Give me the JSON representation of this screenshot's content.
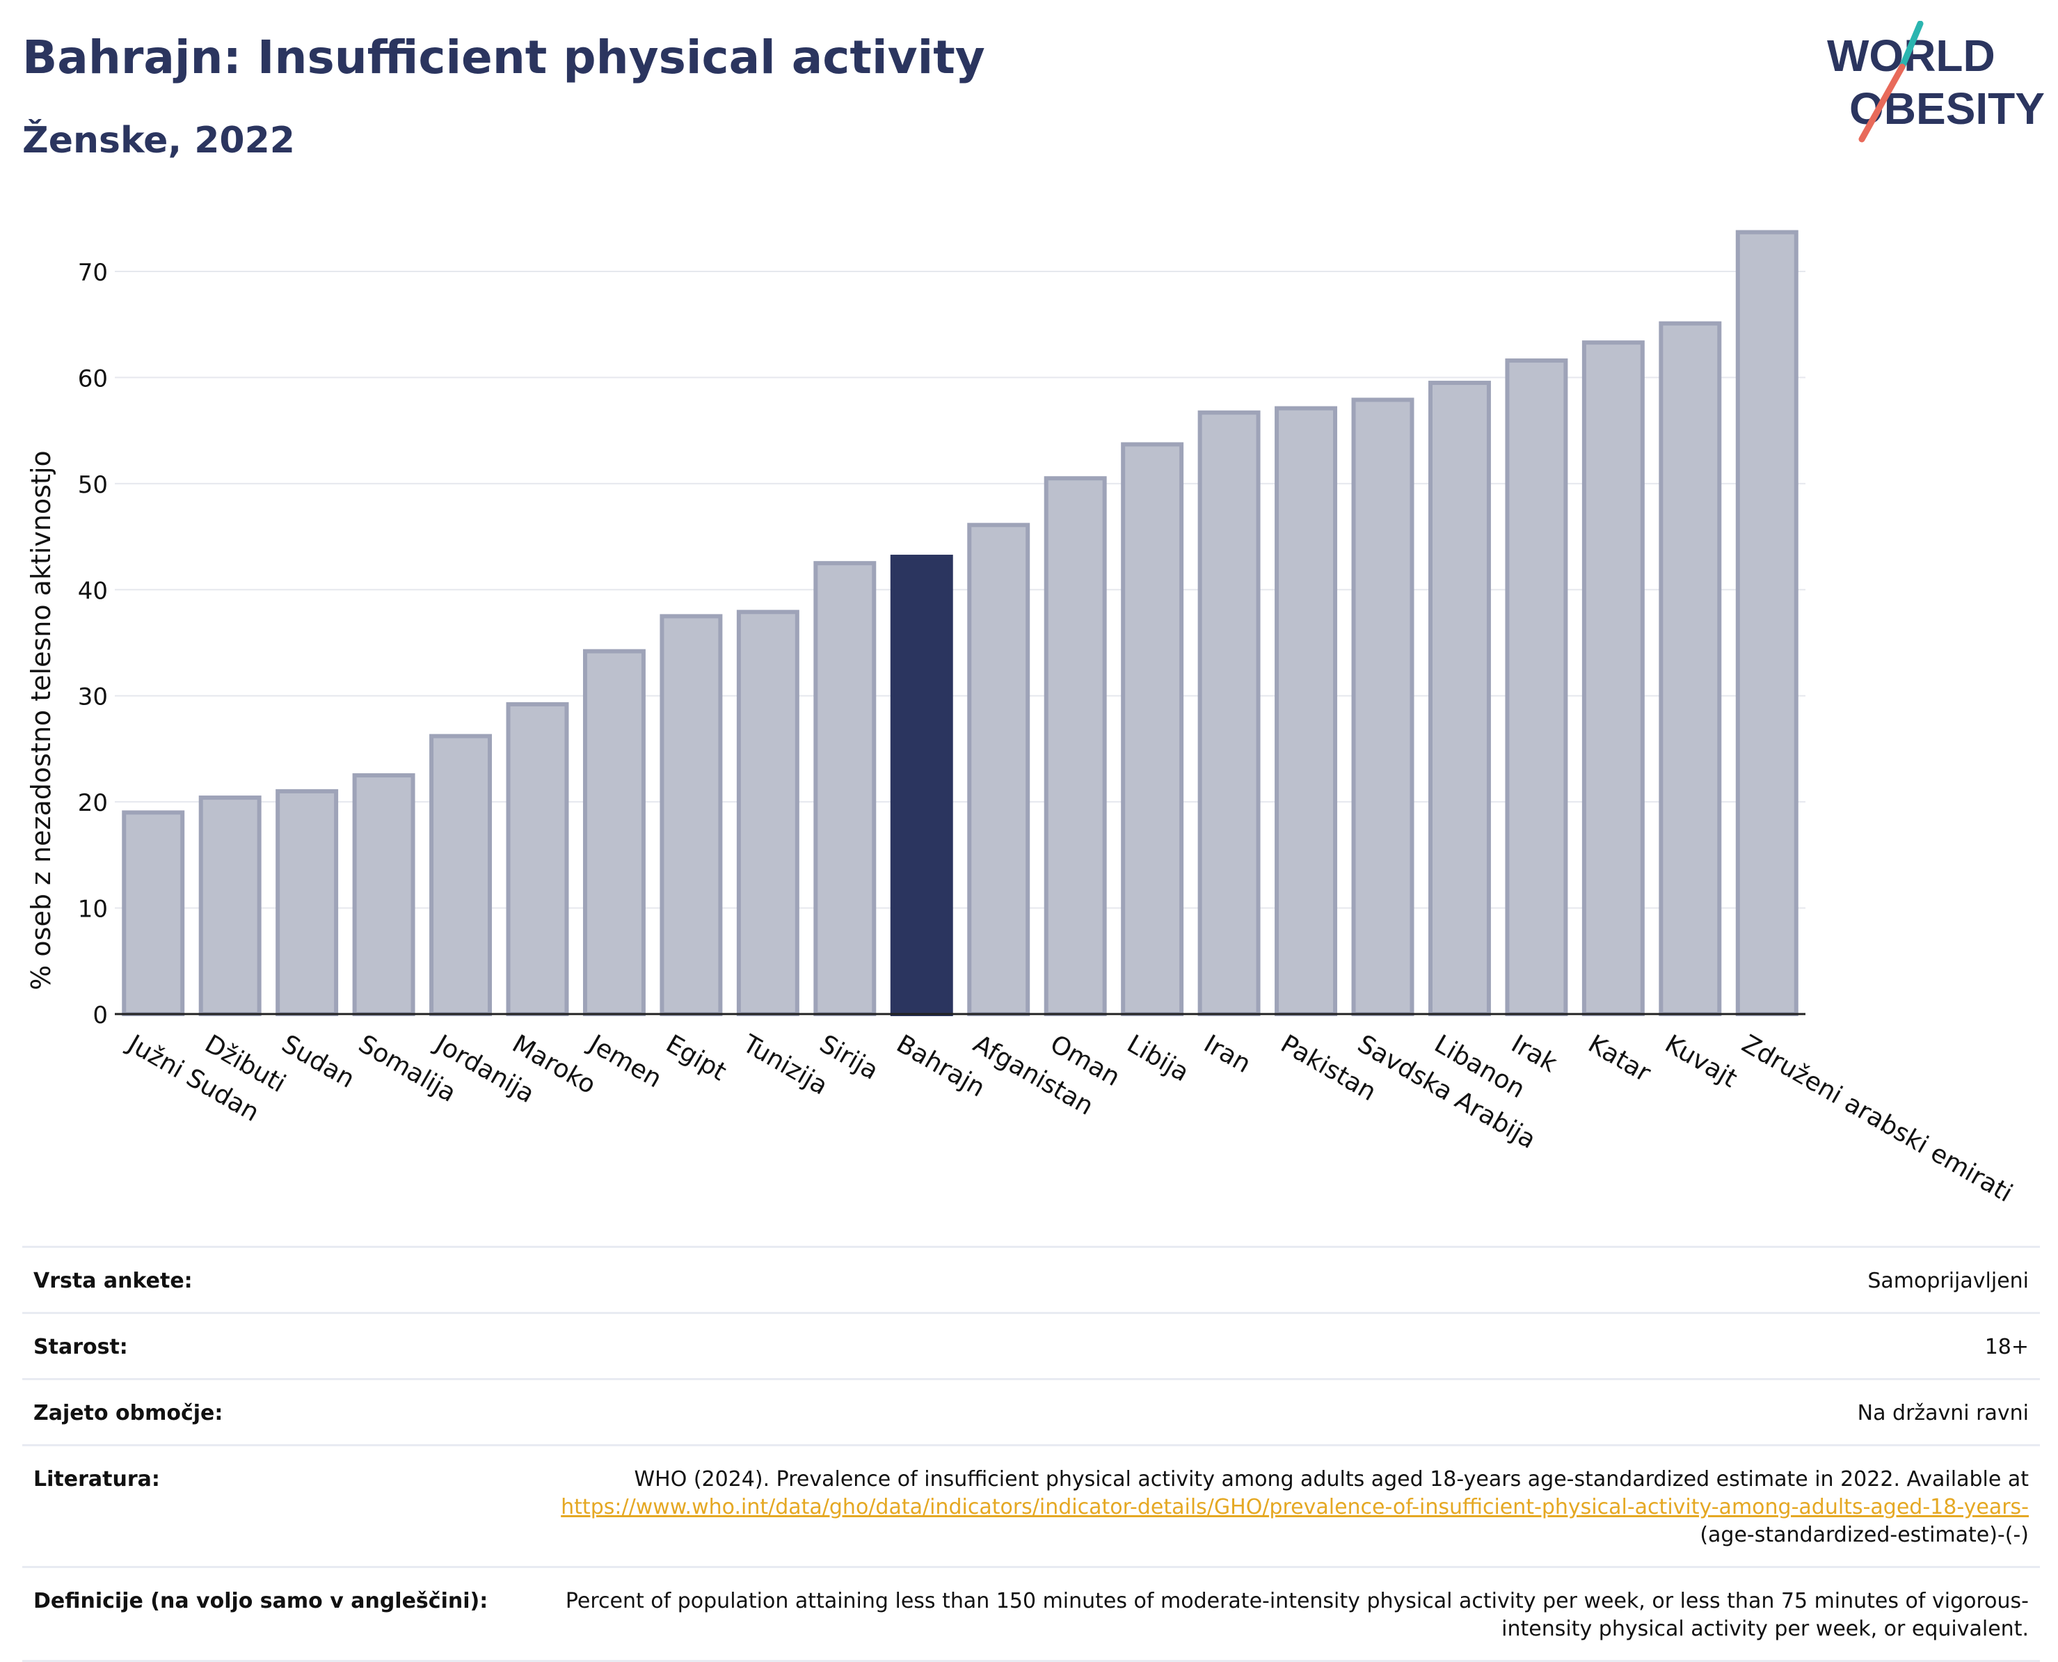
{
  "header": {
    "title": "Bahrajn: Insufficient physical activity",
    "subtitle": "Ženske, 2022"
  },
  "logo": {
    "line1": "WORLD",
    "line2": "OBESITY",
    "accent_colors": [
      "#2bb5b0",
      "#e86a5a"
    ],
    "brand_color": "#2b355f"
  },
  "chart_data": {
    "type": "bar",
    "title": "Bahrajn: Insufficient physical activity",
    "subtitle": "Ženske, 2022",
    "xlabel": "",
    "ylabel": "% oseb z nezadostno telesno aktivnostjo",
    "ylim": [
      0,
      75
    ],
    "yticks": [
      "0",
      "10",
      "20",
      "30",
      "40",
      "50",
      "60",
      "70"
    ],
    "grid": true,
    "highlight": "Bahrajn",
    "colors": {
      "bar": "#bcc0cd",
      "bar_edge": "#9ea3b8",
      "highlight": "#2b355f"
    },
    "categories": [
      "Južni Sudan",
      "Džibuti",
      "Sudan",
      "Somalija",
      "Jordanija",
      "Maroko",
      "Jemen",
      "Egipt",
      "Tunizija",
      "Sirija",
      "Bahrajn",
      "Afganistan",
      "Oman",
      "Libija",
      "Iran",
      "Pakistan",
      "Savdska Arabija",
      "Libanon",
      "Irak",
      "Katar",
      "Kuvajt",
      "Združeni arabski emirati"
    ],
    "values": [
      19.0,
      20.4,
      21.0,
      22.5,
      26.2,
      29.2,
      34.2,
      37.5,
      37.9,
      42.5,
      43.1,
      46.1,
      50.5,
      53.7,
      56.7,
      57.1,
      57.9,
      59.5,
      61.6,
      63.3,
      65.1,
      73.7
    ]
  },
  "info": {
    "survey_type": {
      "label": "Vrsta ankete:",
      "value": "Samoprijavljeni"
    },
    "age": {
      "label": "Starost:",
      "value": "18+"
    },
    "coverage": {
      "label": "Zajeto območje:",
      "value": "Na državni ravni"
    },
    "references": {
      "label": "Literatura:",
      "text_before": "WHO (2024). Prevalence of insufficient physical activity among adults aged 18-years age-standardized estimate in 2022. Available at ",
      "link": "https://www.who.int/data/gho/data/indicators/indicator-details/GHO/prevalence-of-insufficient-physical-activity-among-adults-aged-18-years-",
      "text_after": "(age-standardized-estimate)-(-)"
    },
    "definitions": {
      "label": "Definicije (na voljo samo v angleščini):",
      "value": "Percent of population attaining less than 150 minutes of moderate-intensity physical activity per week, or less than 75 minutes of vigorous-intensity physical activity per week, or equivalent."
    }
  }
}
